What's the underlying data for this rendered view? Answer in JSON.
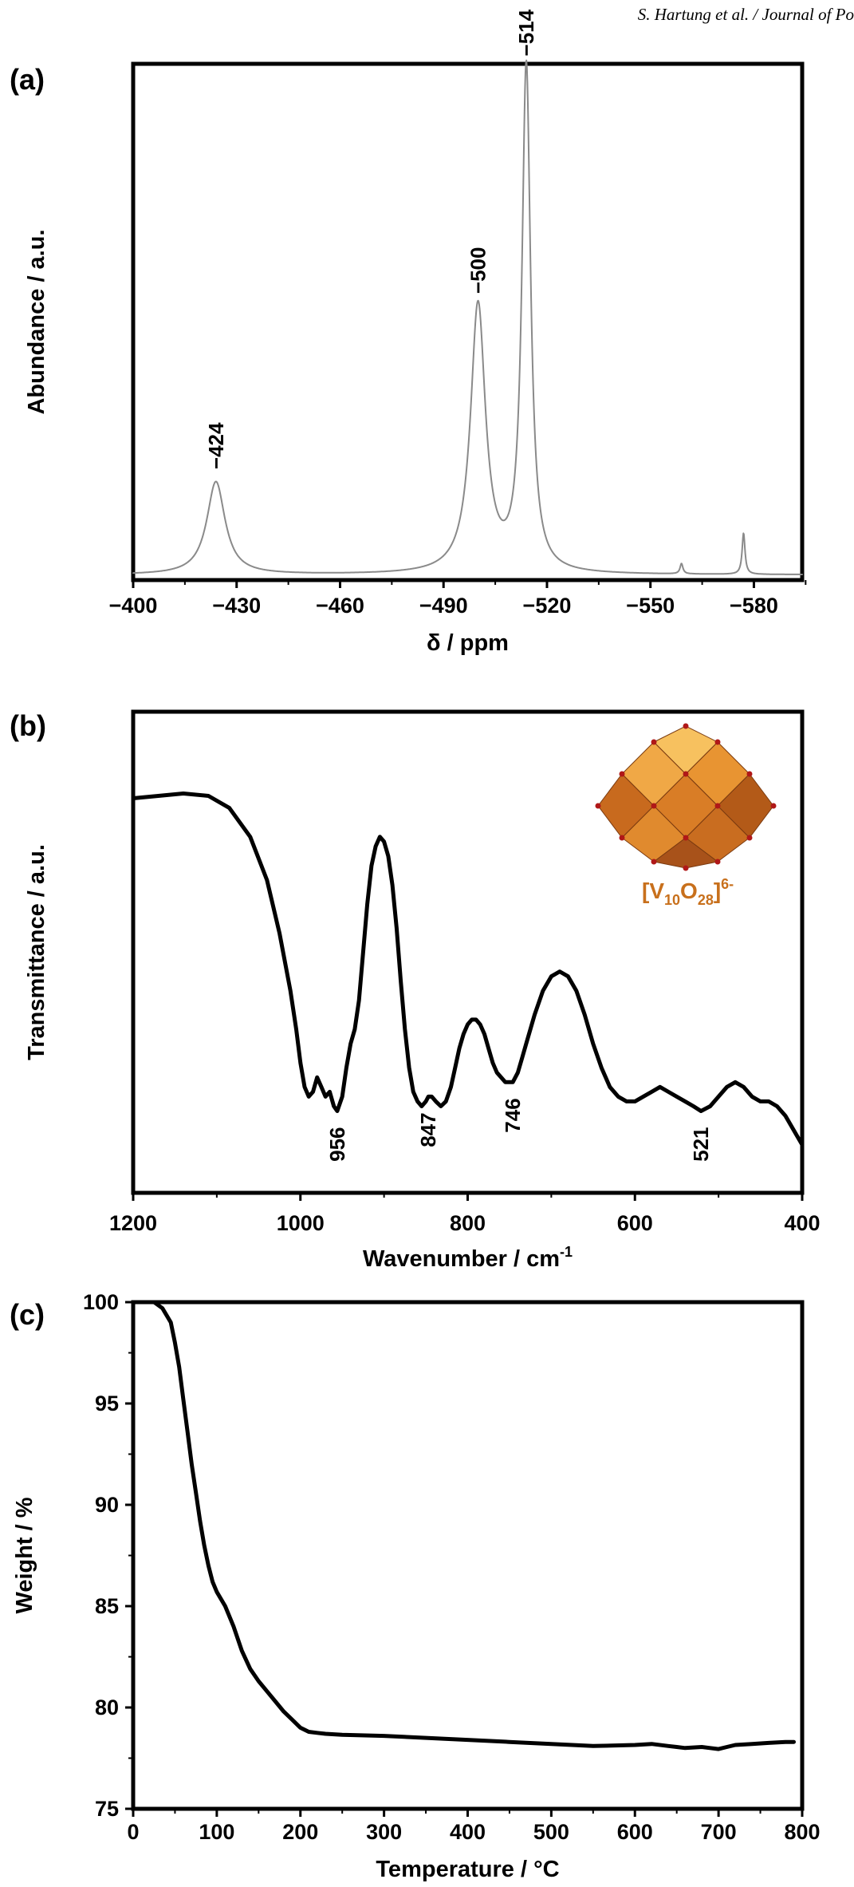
{
  "header": {
    "running_title": "S. Hartung et al. / Journal of Po"
  },
  "colors": {
    "axes": "#000000",
    "nmr_line": "#8a8a8a",
    "line": "#000000",
    "accent": "#c8701c"
  },
  "inset": {
    "icon": "decavanadate-polyhedron-icon",
    "formula": {
      "main": "[V",
      "sub1": "10",
      "mid": "O",
      "sub2": "28",
      "close": "]",
      "charge": "6-"
    }
  },
  "chart_data": [
    {
      "panel": "(a)",
      "type": "line",
      "xlabel": "δ / ppm",
      "ylabel": "Abundance / a.u.",
      "xlim": [
        -400,
        -594
      ],
      "ylim": [
        0,
        1.0
      ],
      "xticks": [
        -400,
        -430,
        -460,
        -490,
        -520,
        -550,
        -580
      ],
      "xtick_labels": [
        "−400",
        "−430",
        "−460",
        "−490",
        "−520",
        "−550",
        "−580"
      ],
      "peaks": [
        {
          "x": -424,
          "height": 0.18,
          "width": 3.2
        },
        {
          "x": -500,
          "height": 0.52,
          "width": 2.6
        },
        {
          "x": -514,
          "height": 0.98,
          "width": 1.5
        },
        {
          "x": -559,
          "height": 0.02,
          "width": 0.5
        },
        {
          "x": -577,
          "height": 0.08,
          "width": 0.5
        }
      ],
      "baseline": 0.01,
      "annotations": [
        {
          "x": -424,
          "text": "−424"
        },
        {
          "x": -500,
          "text": "−500"
        },
        {
          "x": -514,
          "text": "−514"
        }
      ]
    },
    {
      "panel": "(b)",
      "type": "line",
      "xlabel": "Wavenumber / cm",
      "xlabel_sup": "-1",
      "ylabel": "Transmittance / a.u.",
      "xlim": [
        1200,
        400
      ],
      "ylim": [
        0,
        1.0
      ],
      "xticks": [
        1200,
        1000,
        800,
        600,
        400
      ],
      "xtick_labels": [
        "1200",
        "1000",
        "800",
        "600",
        "400"
      ],
      "x": [
        1200,
        1170,
        1140,
        1110,
        1085,
        1060,
        1040,
        1025,
        1012,
        1005,
        1000,
        995,
        990,
        985,
        980,
        975,
        970,
        965,
        960,
        956,
        950,
        945,
        940,
        935,
        930,
        925,
        920,
        915,
        910,
        905,
        900,
        895,
        890,
        885,
        880,
        875,
        870,
        865,
        860,
        855,
        850,
        847,
        843,
        838,
        832,
        826,
        820,
        815,
        810,
        805,
        800,
        795,
        790,
        785,
        780,
        775,
        770,
        765,
        760,
        755,
        750,
        746,
        740,
        735,
        730,
        720,
        710,
        700,
        690,
        680,
        670,
        660,
        650,
        640,
        630,
        620,
        610,
        600,
        590,
        580,
        570,
        560,
        550,
        540,
        530,
        521,
        510,
        500,
        490,
        480,
        470,
        460,
        450,
        440,
        430,
        420,
        410,
        400
      ],
      "y": [
        0.82,
        0.825,
        0.83,
        0.825,
        0.8,
        0.74,
        0.65,
        0.54,
        0.42,
        0.34,
        0.27,
        0.22,
        0.2,
        0.21,
        0.24,
        0.22,
        0.2,
        0.21,
        0.18,
        0.17,
        0.2,
        0.26,
        0.31,
        0.34,
        0.4,
        0.5,
        0.6,
        0.68,
        0.72,
        0.74,
        0.73,
        0.7,
        0.64,
        0.55,
        0.44,
        0.34,
        0.26,
        0.21,
        0.19,
        0.18,
        0.19,
        0.2,
        0.2,
        0.19,
        0.18,
        0.19,
        0.22,
        0.26,
        0.3,
        0.33,
        0.35,
        0.36,
        0.36,
        0.35,
        0.33,
        0.3,
        0.27,
        0.25,
        0.24,
        0.23,
        0.23,
        0.23,
        0.25,
        0.28,
        0.31,
        0.37,
        0.42,
        0.45,
        0.46,
        0.45,
        0.42,
        0.37,
        0.31,
        0.26,
        0.22,
        0.2,
        0.19,
        0.19,
        0.2,
        0.21,
        0.22,
        0.21,
        0.2,
        0.19,
        0.18,
        0.17,
        0.18,
        0.2,
        0.22,
        0.23,
        0.22,
        0.2,
        0.19,
        0.19,
        0.18,
        0.16,
        0.13,
        0.1
      ],
      "annotations": [
        {
          "x": 956,
          "text": "956"
        },
        {
          "x": 847,
          "text": "847"
        },
        {
          "x": 746,
          "text": "746"
        },
        {
          "x": 521,
          "text": "521"
        }
      ]
    },
    {
      "panel": "(c)",
      "type": "line",
      "xlabel": "Temperature / °C",
      "ylabel": "Weight / %",
      "xlim": [
        0,
        800
      ],
      "ylim": [
        75,
        100
      ],
      "xticks": [
        0,
        100,
        200,
        300,
        400,
        500,
        600,
        700,
        800
      ],
      "xtick_labels": [
        "0",
        "100",
        "200",
        "300",
        "400",
        "500",
        "600",
        "700",
        "800"
      ],
      "yticks": [
        75,
        80,
        85,
        90,
        95,
        100
      ],
      "ytick_labels": [
        "75",
        "80",
        "85",
        "90",
        "95",
        "100"
      ],
      "x": [
        25,
        35,
        45,
        50,
        55,
        60,
        65,
        70,
        75,
        80,
        85,
        90,
        95,
        100,
        110,
        120,
        130,
        140,
        150,
        160,
        170,
        180,
        190,
        200,
        210,
        220,
        230,
        250,
        300,
        350,
        400,
        450,
        500,
        550,
        600,
        620,
        640,
        650,
        660,
        680,
        700,
        710,
        720,
        740,
        760,
        780,
        790
      ],
      "y": [
        100,
        99.7,
        99.0,
        98.0,
        96.8,
        95.2,
        93.6,
        92.0,
        90.6,
        89.2,
        88.0,
        87.0,
        86.2,
        85.7,
        85.0,
        84.0,
        82.8,
        81.9,
        81.3,
        80.8,
        80.3,
        79.8,
        79.4,
        79.0,
        78.8,
        78.75,
        78.7,
        78.65,
        78.6,
        78.5,
        78.4,
        78.3,
        78.2,
        78.1,
        78.15,
        78.2,
        78.1,
        78.05,
        78.0,
        78.05,
        77.95,
        78.05,
        78.15,
        78.2,
        78.25,
        78.3,
        78.3
      ]
    }
  ]
}
